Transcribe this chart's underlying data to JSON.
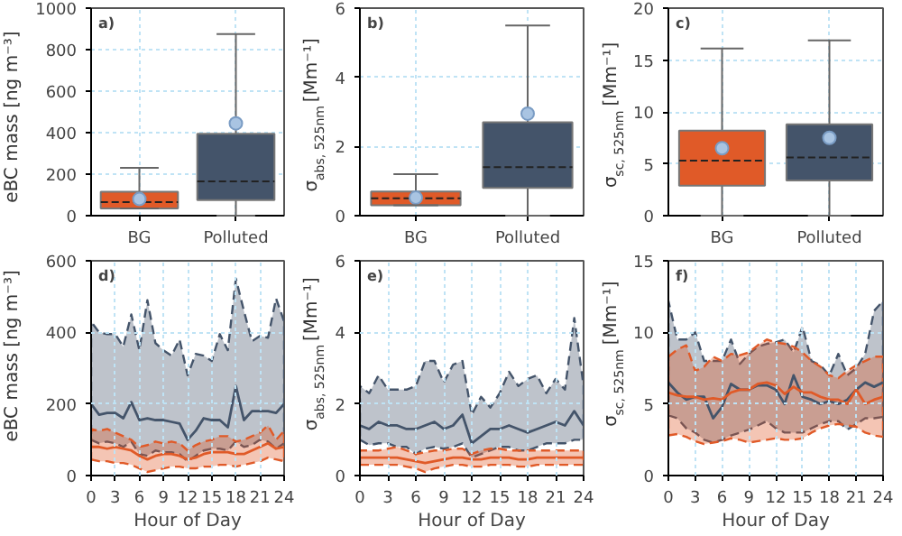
{
  "chart_data": [
    {
      "type": "box",
      "title": "a)",
      "ylabel": "eBC mass [ng m⁻³]",
      "categories": [
        "BG",
        "Polluted"
      ],
      "colors": [
        "#e05a28",
        "#44546a"
      ],
      "boxes": [
        {
          "low": 35,
          "q1": 35,
          "median": 65,
          "q3": 115,
          "high": 230,
          "mean": 80
        },
        {
          "low": 0,
          "q1": 75,
          "median": 165,
          "q3": 395,
          "high": 875,
          "mean": 445
        }
      ],
      "ylim": [
        0,
        1000
      ],
      "yticks": [
        0,
        200,
        400,
        600,
        800,
        1000
      ],
      "grid": true
    },
    {
      "type": "box",
      "title": "b)",
      "ylabel": "σ$_{abs, 525nm}$ [Mm⁻¹]",
      "categories": [
        "BG",
        "Polluted"
      ],
      "colors": [
        "#e05a28",
        "#44546a"
      ],
      "boxes": [
        {
          "low": 0.3,
          "q1": 0.3,
          "median": 0.5,
          "q3": 0.7,
          "high": 1.2,
          "mean": 0.52
        },
        {
          "low": 0,
          "q1": 0.8,
          "median": 1.4,
          "q3": 2.7,
          "high": 5.5,
          "mean": 2.95
        }
      ],
      "ylim": [
        0,
        6
      ],
      "yticks": [
        0,
        2,
        4,
        6
      ],
      "grid": true
    },
    {
      "type": "box",
      "title": "c)",
      "ylabel": "σ$_{sc, 525nm}$ [Mm⁻¹]",
      "categories": [
        "BG",
        "Polluted"
      ],
      "colors": [
        "#e05a28",
        "#44546a"
      ],
      "boxes": [
        {
          "low": 0,
          "q1": 2.9,
          "median": 5.3,
          "q3": 8.2,
          "high": 16.1,
          "mean": 6.5
        },
        {
          "low": 0,
          "q1": 3.4,
          "median": 5.6,
          "q3": 8.8,
          "high": 16.9,
          "mean": 7.5
        }
      ],
      "ylim": [
        0,
        20
      ],
      "yticks": [
        0,
        5,
        10,
        15,
        20
      ],
      "grid": true
    },
    {
      "type": "line",
      "title": "d)",
      "xlabel": "Hour of Day",
      "ylabel": "eBC mass [ng m⁻³]",
      "x": [
        0,
        1,
        2,
        3,
        4,
        5,
        6,
        7,
        8,
        9,
        10,
        11,
        12,
        13,
        14,
        15,
        16,
        17,
        18,
        19,
        20,
        21,
        22,
        23,
        24
      ],
      "series": [
        {
          "color": "#44546a",
          "values": [
            200,
            170,
            175,
            175,
            160,
            205,
            155,
            160,
            155,
            155,
            150,
            145,
            100,
            125,
            160,
            155,
            155,
            135,
            250,
            155,
            180,
            180,
            180,
            175,
            200
          ],
          "lower": [
            100,
            90,
            95,
            90,
            80,
            95,
            60,
            55,
            70,
            65,
            65,
            60,
            40,
            55,
            70,
            75,
            75,
            70,
            95,
            80,
            85,
            100,
            95,
            75,
            90
          ],
          "upper": [
            430,
            400,
            395,
            395,
            360,
            450,
            350,
            490,
            370,
            350,
            335,
            380,
            280,
            340,
            335,
            320,
            395,
            350,
            550,
            460,
            375,
            390,
            385,
            495,
            430
          ]
        },
        {
          "color": "#e05a28",
          "values": [
            80,
            80,
            75,
            80,
            75,
            70,
            55,
            45,
            55,
            60,
            60,
            55,
            45,
            50,
            60,
            65,
            65,
            65,
            60,
            60,
            70,
            80,
            90,
            75,
            80
          ],
          "lower": [
            45,
            40,
            40,
            35,
            35,
            30,
            20,
            10,
            15,
            20,
            25,
            25,
            20,
            20,
            25,
            25,
            30,
            30,
            25,
            30,
            35,
            40,
            50,
            45,
            40
          ],
          "upper": [
            130,
            125,
            130,
            120,
            110,
            100,
            80,
            85,
            95,
            90,
            95,
            90,
            70,
            85,
            95,
            100,
            110,
            110,
            95,
            100,
            110,
            120,
            140,
            100,
            125
          ]
        }
      ],
      "xlim": [
        0,
        24
      ],
      "xticks": [
        0,
        3,
        6,
        9,
        12,
        15,
        18,
        21,
        24
      ],
      "ylim": [
        0,
        600
      ],
      "yticks": [
        0,
        200,
        400,
        600
      ],
      "grid": true
    },
    {
      "type": "line",
      "title": "e)",
      "xlabel": "Hour of Day",
      "ylabel": "σ$_{abs, 525nm}$ [Mm⁻¹]",
      "x": [
        0,
        1,
        2,
        3,
        4,
        5,
        6,
        7,
        8,
        9,
        10,
        11,
        12,
        13,
        14,
        15,
        16,
        17,
        18,
        19,
        20,
        21,
        22,
        23,
        24
      ],
      "series": [
        {
          "color": "#44546a",
          "values": [
            1.4,
            1.3,
            1.5,
            1.4,
            1.4,
            1.3,
            1.3,
            1.4,
            1.5,
            1.3,
            1.4,
            1.7,
            0.9,
            1.1,
            1.3,
            1.3,
            1.4,
            1.3,
            1.2,
            1.3,
            1.4,
            1.5,
            1.4,
            1.8,
            1.4
          ],
          "lower": [
            1.0,
            0.85,
            0.9,
            0.9,
            0.8,
            0.8,
            0.6,
            0.75,
            0.8,
            0.75,
            0.8,
            0.9,
            0.5,
            0.6,
            0.7,
            0.8,
            0.8,
            0.7,
            0.7,
            0.8,
            0.9,
            0.9,
            0.9,
            1.0,
            1.0
          ],
          "upper": [
            2.5,
            2.3,
            2.8,
            2.4,
            2.4,
            2.4,
            2.5,
            3.2,
            3.2,
            2.6,
            3.1,
            3.2,
            1.7,
            2.2,
            1.9,
            2.3,
            2.9,
            2.5,
            2.7,
            2.8,
            2.3,
            2.7,
            2.4,
            4.4,
            2.5
          ]
        },
        {
          "color": "#e05a28",
          "values": [
            0.5,
            0.5,
            0.5,
            0.5,
            0.5,
            0.45,
            0.4,
            0.35,
            0.4,
            0.45,
            0.5,
            0.5,
            0.45,
            0.45,
            0.5,
            0.5,
            0.5,
            0.45,
            0.45,
            0.5,
            0.5,
            0.5,
            0.5,
            0.5,
            0.5
          ],
          "lower": [
            0.3,
            0.3,
            0.3,
            0.3,
            0.3,
            0.25,
            0.2,
            0.1,
            0.2,
            0.25,
            0.3,
            0.3,
            0.25,
            0.25,
            0.3,
            0.3,
            0.3,
            0.25,
            0.25,
            0.3,
            0.3,
            0.3,
            0.3,
            0.3,
            0.3
          ],
          "upper": [
            0.7,
            0.7,
            0.7,
            0.75,
            0.8,
            0.7,
            0.6,
            0.65,
            0.7,
            0.7,
            0.75,
            0.75,
            0.6,
            0.7,
            0.75,
            0.75,
            0.7,
            0.7,
            0.7,
            0.7,
            0.7,
            0.7,
            0.7,
            0.7,
            0.7
          ]
        }
      ],
      "xlim": [
        0,
        24
      ],
      "xticks": [
        0,
        3,
        6,
        9,
        12,
        15,
        18,
        21,
        24
      ],
      "ylim": [
        0,
        6
      ],
      "yticks": [
        0,
        2,
        4,
        6
      ],
      "grid": true
    },
    {
      "type": "line",
      "title": "f)",
      "xlabel": "Hour of Day",
      "ylabel": "σ$_{sc, 525nm}$ [Mm⁻¹]",
      "x": [
        0,
        1,
        2,
        3,
        4,
        5,
        6,
        7,
        8,
        9,
        10,
        11,
        12,
        13,
        14,
        15,
        16,
        17,
        18,
        19,
        20,
        21,
        22,
        23,
        24
      ],
      "series": [
        {
          "color": "#44546a",
          "values": [
            6.5,
            5.8,
            5.3,
            5.5,
            5.5,
            4,
            4.8,
            6.4,
            6,
            6,
            6.3,
            6.3,
            6,
            5,
            7,
            5.5,
            5.3,
            5,
            5.2,
            5,
            5.3,
            6,
            6.5,
            6.2,
            6.5
          ],
          "lower": [
            4.2,
            4,
            3.3,
            3,
            2.5,
            2.3,
            2.5,
            2.8,
            3,
            3.2,
            3.5,
            3.8,
            3.3,
            3,
            3,
            3,
            3.3,
            3.6,
            3.8,
            3.8,
            3.2,
            3.6,
            4,
            4,
            4.1
          ],
          "upper": [
            12.2,
            9.5,
            9.5,
            10,
            8,
            8,
            8,
            9.5,
            7.8,
            8.5,
            9,
            9.2,
            9.3,
            9.5,
            8.6,
            10.4,
            8,
            7.7,
            7,
            8.5,
            7,
            7.5,
            8.5,
            11.5,
            12.2
          ]
        },
        {
          "color": "#e05a28",
          "values": [
            5.8,
            5.6,
            5.5,
            5.5,
            5.3,
            5.4,
            5.3,
            5.8,
            6,
            6,
            6.4,
            6.5,
            6.3,
            5.7,
            6.2,
            5.8,
            5.8,
            5.5,
            5.3,
            5.3,
            5,
            6,
            5,
            5.3,
            5.5
          ],
          "lower": [
            2.8,
            2.9,
            2.7,
            2.4,
            2.2,
            2.3,
            2.4,
            2.6,
            2.5,
            2.3,
            2.4,
            2.5,
            2.6,
            2.5,
            2.5,
            2.6,
            3,
            3.3,
            3.5,
            3.6,
            3.5,
            3.4,
            3,
            2.8,
            2.7
          ],
          "upper": [
            8.3,
            8.8,
            9.1,
            7.3,
            7.6,
            8.3,
            8,
            8.5,
            8.4,
            8.6,
            9.1,
            9.5,
            9.3,
            9.2,
            9,
            8.6,
            8,
            7.6,
            7,
            6.8,
            7.3,
            7.7,
            8,
            8.3,
            8.3
          ]
        }
      ],
      "xlim": [
        0,
        24
      ],
      "xticks": [
        0,
        3,
        6,
        9,
        12,
        15,
        18,
        21,
        24
      ],
      "ylim": [
        0,
        15
      ],
      "yticks": [
        0,
        5,
        10,
        15
      ],
      "grid": true
    }
  ]
}
